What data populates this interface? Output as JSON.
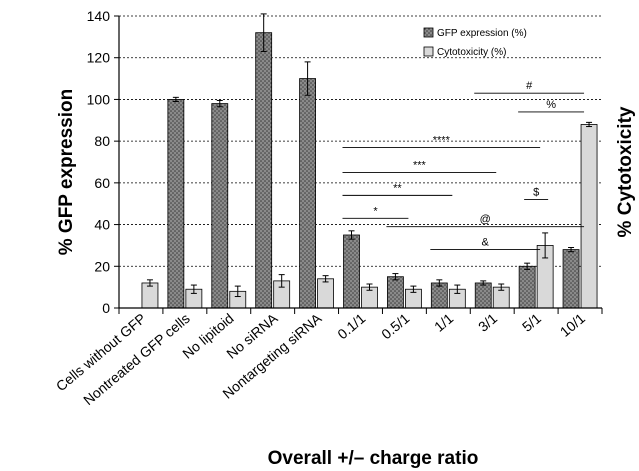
{
  "chart_data": {
    "type": "bar",
    "ylabel": "% GFP expression",
    "y2label": "% Cytotoxicity",
    "xlabel": "Overall +/– charge ratio",
    "ylim": [
      0,
      140
    ],
    "yticks": [
      "0",
      "20",
      "40",
      "60",
      "80",
      "100",
      "120",
      "140"
    ],
    "grid": "horizontal dotted",
    "legend_position": "top-right",
    "categories": [
      "Cells without GFP",
      "Nontreated GFP cells",
      "No lipitoid",
      "No siRNA",
      "Nontargeting siRNA",
      "0.1/1",
      "0.5/1",
      "1/1",
      "3/1",
      "5/1",
      "10/1"
    ],
    "series": [
      {
        "name": "GFP expression (%)",
        "color": "#8a8a8a",
        "pattern": "dotted",
        "values": [
          null,
          100,
          98,
          132,
          110,
          35,
          15,
          12,
          12,
          20,
          28
        ],
        "errors": [
          null,
          1,
          1.5,
          9,
          8,
          2,
          1.5,
          1.5,
          1,
          1.5,
          1
        ]
      },
      {
        "name": "Cytotoxicity (%)",
        "color": "#d9d9d9",
        "pattern": "solid",
        "values": [
          12,
          9,
          8,
          13,
          14,
          10,
          9,
          9,
          10,
          30,
          88
        ],
        "errors": [
          1.5,
          2,
          2.5,
          3,
          1.5,
          1.5,
          1.5,
          2,
          1.5,
          6,
          1
        ]
      }
    ],
    "significance": [
      {
        "label": "#",
        "from": "3/1",
        "to": "10/1",
        "y": 103
      },
      {
        "label": "%",
        "from": "5/1",
        "to": "10/1",
        "y": 94
      },
      {
        "label": "****",
        "from": "0.1/1",
        "to": "5/1",
        "y": 77
      },
      {
        "label": "***",
        "from": "0.1/1",
        "to": "3/1",
        "y": 65
      },
      {
        "label": "**",
        "from": "0.1/1",
        "to": "1/1",
        "y": 54
      },
      {
        "label": "$",
        "from": "5/1",
        "to": "5/1",
        "y": 52
      },
      {
        "label": "*",
        "from": "0.1/1",
        "to": "0.5/1",
        "y": 43
      },
      {
        "label": "@",
        "from": "0.5/1",
        "to": "10/1",
        "y": 39
      },
      {
        "label": "&",
        "from": "1/1",
        "to": "5/1",
        "y": 28
      }
    ]
  }
}
